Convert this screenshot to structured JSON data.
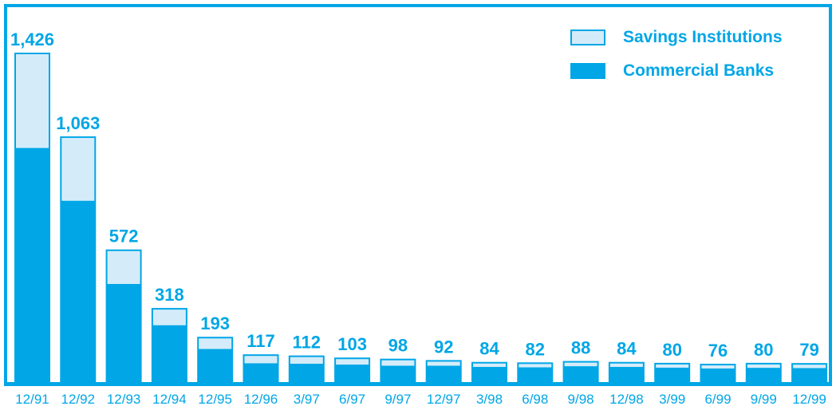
{
  "chart_data": {
    "type": "bar",
    "stacked": true,
    "categories": [
      "12/91",
      "12/92",
      "12/93",
      "12/94",
      "12/95",
      "12/96",
      "3/97",
      "6/97",
      "9/97",
      "12/97",
      "3/98",
      "6/98",
      "9/98",
      "12/98",
      "3/99",
      "6/99",
      "9/99",
      "12/99"
    ],
    "series": [
      {
        "name": "Commercial Banks",
        "values": [
          1016,
          787,
          426,
          247,
          144,
          82,
          80,
          76,
          71,
          71,
          66,
          64,
          69,
          66,
          63,
          59,
          62,
          61
        ]
      },
      {
        "name": "Savings Institutions",
        "values": [
          410,
          276,
          146,
          71,
          49,
          35,
          32,
          27,
          27,
          21,
          18,
          18,
          19,
          18,
          17,
          17,
          18,
          18
        ]
      }
    ],
    "totals": [
      "1,426",
      "1,063",
      "572",
      "318",
      "193",
      "117",
      "112",
      "103",
      "98",
      "92",
      "84",
      "82",
      "88",
      "84",
      "80",
      "76",
      "80",
      "79"
    ],
    "ylim": [
      0,
      1426
    ],
    "legend_position": "top-right",
    "title": "",
    "xlabel": "",
    "ylabel": "",
    "grid": false
  },
  "colors": {
    "commercial": "#00a6e6",
    "savings": "#d4ecfa",
    "frame": "#00a6e6",
    "label": "#00a6e6",
    "axis_text": "#00a6e6"
  }
}
